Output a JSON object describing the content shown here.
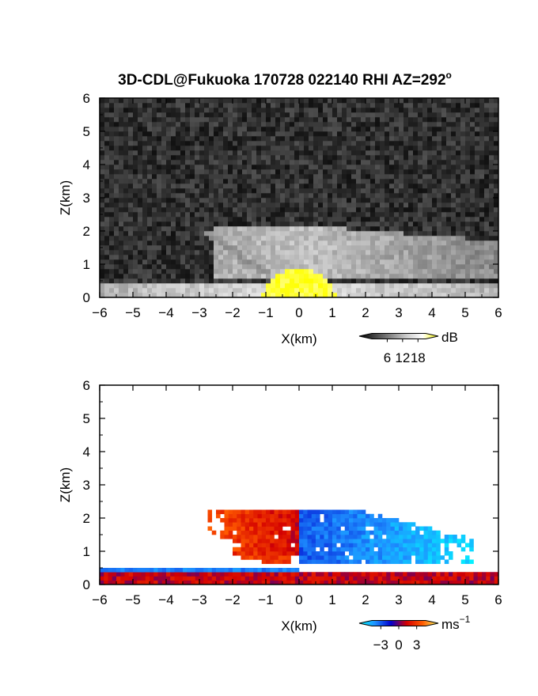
{
  "title": "3D-CDL@Fukuoka 170728 022140 RHI AZ=292",
  "title_superscript": "o",
  "chart_data": [
    {
      "type": "heatmap",
      "field": "reflectivity",
      "xlabel": "X(km)",
      "ylabel": "Z(km)",
      "xlim": [
        -6,
        6
      ],
      "ylim": [
        0,
        6
      ],
      "xticks": [
        "-6",
        "-5",
        "-4",
        "-3",
        "-2",
        "-1",
        "0",
        "1",
        "2",
        "3",
        "4",
        "5",
        "6"
      ],
      "yticks": [
        "0",
        "1",
        "2",
        "3",
        "4",
        "5",
        "6"
      ],
      "colorbar": {
        "unit": "dB",
        "ticks": [
          "6",
          "12",
          "18"
        ],
        "tick_values": [
          6,
          12,
          18
        ],
        "range": [
          0,
          21
        ],
        "colors": [
          "#000000",
          "#444444",
          "#888888",
          "#cccccc",
          "#ffffff",
          "#ffff00"
        ]
      },
      "features": [
        {
          "name": "background noise",
          "value_db": 3
        },
        {
          "name": "layer",
          "x": [
            -2.6,
            6
          ],
          "z": [
            0.6,
            2.1
          ],
          "value_db": 12
        },
        {
          "name": "slant band",
          "x": [
            -2.8,
            -0.8
          ],
          "z": [
            0.6,
            2.0
          ],
          "value_db": 9
        },
        {
          "name": "surface echo",
          "x": [
            -6,
            6
          ],
          "z": [
            0,
            0.4
          ],
          "value_db": 14
        },
        {
          "name": "near-radar peak",
          "x": [
            -1,
            1
          ],
          "z": [
            0,
            0.8
          ],
          "value_db": 20
        }
      ]
    },
    {
      "type": "heatmap",
      "field": "radial velocity",
      "xlabel": "X(km)",
      "ylabel": "Z(km)",
      "xlim": [
        -6,
        6
      ],
      "ylim": [
        0,
        6
      ],
      "xticks": [
        "-6",
        "-5",
        "-4",
        "-3",
        "-2",
        "-1",
        "0",
        "1",
        "2",
        "3",
        "4",
        "5",
        "6"
      ],
      "yticks": [
        "0",
        "1",
        "2",
        "3",
        "4",
        "5",
        "6"
      ],
      "colorbar": {
        "unit": "ms",
        "unit_superscript": "−1",
        "ticks": [
          "−3",
          "0",
          "3"
        ],
        "tick_values": [
          -3,
          0,
          3
        ],
        "range": [
          -4.5,
          4.5
        ],
        "colors": [
          "#00ffff",
          "#1e90ff",
          "#0000cd",
          "#d40000",
          "#ff5a00",
          "#ffff66"
        ]
      },
      "features": [
        {
          "name": "layer, x<0",
          "x": [
            -2.8,
            0
          ],
          "z": [
            0.9,
            2.3
          ],
          "value_ms": 2.5
        },
        {
          "name": "layer, x>0",
          "x": [
            0,
            5.2
          ],
          "z": [
            0.6,
            2.3
          ],
          "value_ms": -2.0
        },
        {
          "name": "lower band",
          "x": [
            -2.0,
            -0.3
          ],
          "z": [
            0.6,
            1.1
          ],
          "value_ms": 2.0
        },
        {
          "name": "surface flow",
          "x": [
            -6,
            6
          ],
          "z": [
            0,
            0.35
          ],
          "value_ms": 0.8
        },
        {
          "name": "thin negative strip",
          "x": [
            -6,
            0
          ],
          "z": [
            0.35,
            0.5
          ],
          "value_ms": -2.5
        }
      ]
    }
  ]
}
